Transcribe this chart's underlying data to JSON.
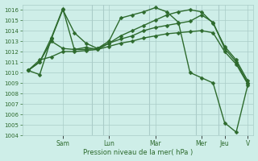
{
  "bg_color": "#ceeee8",
  "grid_color": "#aaccc8",
  "line_color": "#2d6a2d",
  "markersize": 2.5,
  "linewidth": 1.0,
  "ylabel": "Pression niveau de la mer( hPa )",
  "ylim": [
    1004,
    1016.5
  ],
  "yticks": [
    1004,
    1005,
    1006,
    1007,
    1008,
    1009,
    1010,
    1011,
    1012,
    1013,
    1014,
    1015,
    1016
  ],
  "x_labels": [
    "Sam",
    "Lun",
    "Mar",
    "Mer",
    "Jeu",
    "V"
  ],
  "series": [
    {
      "x": [
        0,
        1,
        2,
        3,
        4,
        5,
        6,
        7,
        8,
        9,
        10,
        11,
        12,
        13,
        14,
        15,
        16,
        17,
        18,
        19
      ],
      "y": [
        1010.2,
        1009.8,
        1013.2,
        1016.0,
        1013.8,
        1012.8,
        1012.3,
        1013.0,
        1015.2,
        1015.5,
        1015.8,
        1016.2,
        1015.8,
        1014.8,
        1010.0,
        1009.5,
        1009.0,
        1005.2,
        1004.3,
        1008.8
      ]
    },
    {
      "x": [
        0,
        1,
        2,
        3,
        4,
        5,
        6,
        7,
        8,
        9,
        10,
        11,
        12,
        13,
        14,
        15,
        16,
        17,
        18,
        19
      ],
      "y": [
        1010.2,
        1011.0,
        1013.3,
        1016.1,
        1012.2,
        1012.4,
        1012.2,
        1012.8,
        1013.5,
        1014.0,
        1014.5,
        1015.0,
        1015.5,
        1015.8,
        1016.0,
        1015.8,
        1014.7,
        1012.5,
        1011.2,
        1009.2
      ]
    },
    {
      "x": [
        0,
        1,
        2,
        3,
        4,
        5,
        6,
        7,
        8,
        9,
        10,
        11,
        12,
        13,
        14,
        15,
        16,
        17,
        18,
        19
      ],
      "y": [
        1010.2,
        1011.0,
        1013.0,
        1012.3,
        1012.2,
        1012.2,
        1012.3,
        1012.8,
        1013.2,
        1013.5,
        1014.0,
        1014.3,
        1014.5,
        1014.7,
        1014.9,
        1015.5,
        1014.8,
        1012.3,
        1011.0,
        1009.0
      ]
    },
    {
      "x": [
        0,
        1,
        2,
        3,
        4,
        5,
        6,
        7,
        8,
        9,
        10,
        11,
        12,
        13,
        14,
        15,
        16,
        17,
        18,
        19
      ],
      "y": [
        1010.2,
        1011.2,
        1011.5,
        1012.0,
        1012.0,
        1012.1,
        1012.2,
        1012.5,
        1012.8,
        1013.0,
        1013.3,
        1013.5,
        1013.7,
        1013.8,
        1013.9,
        1014.0,
        1013.8,
        1012.0,
        1010.8,
        1008.9
      ]
    }
  ],
  "day_x_positions": [
    3,
    7,
    11,
    15,
    17,
    19
  ],
  "day_labels": [
    "Sam",
    "Lun",
    "Mar",
    "Mer",
    "Jeu",
    "V"
  ]
}
